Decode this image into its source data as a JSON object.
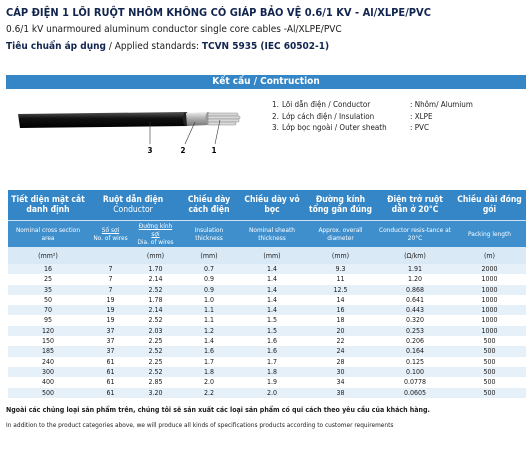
{
  "header": {
    "title": "CÁP ĐIỆN 1 LÕI RUỘT NHÔM KHÔNG CÓ GIÁP BẢO VỆ 0.6/1 KV - Al/XLPE/PVC",
    "subtitle": "0.6/1 kV unarmoured aluminum conductor single core cables -Al/XLPE/PVC",
    "standards": {
      "label_vi": "Tiêu chuẩn áp dụng",
      "label_en": "/ Applied standards:",
      "value": "TCVN 5935 (IEC 60502-1)"
    }
  },
  "construction": {
    "title": "Kết cấu / Contruction",
    "items": [
      {
        "number": "1.",
        "name": "Lõi dẫn điện / Conductor",
        "material": ": Nhôm/ Alumium"
      },
      {
        "number": "2.",
        "name": "Lớp cách điện / Insulation",
        "material": ": XLPE"
      },
      {
        "number": "3.",
        "name": "Lớp bọc ngoài / Outer sheath",
        "material": ": PVC"
      }
    ],
    "callouts": [
      "3",
      "2",
      "1"
    ]
  },
  "table": {
    "group": {
      "vi": "Ruột dẫn điện",
      "en": "Conductor"
    },
    "columns": [
      {
        "vi": "Tiết diện mặt cắt danh định",
        "en": "Nominal cross section area",
        "unit": "(mm²)"
      },
      {
        "sub": "Số sợi",
        "en": "No. of wires"
      },
      {
        "sub": "Đường kính sợi",
        "en": "Dia. of wires",
        "unit": "(mm)"
      },
      {
        "vi": "Chiều dày cách điện",
        "en": "Insulation thickness",
        "unit": "(mm)"
      },
      {
        "vi": "Chiều dày vỏ bọc",
        "en": "Nominal sheath thickness",
        "unit": "(mm)"
      },
      {
        "vi": "Đường kính tổng gần đúng",
        "en": "Approx. overall diameter",
        "unit": "(mm)"
      },
      {
        "vi": "Điện trở ruột dẫn ở 20°C",
        "en": "Conductor resis-tance at 20°C",
        "unit": "(Ω/km)"
      },
      {
        "vi": "Chiều dài đóng gói",
        "en": "Packing length",
        "unit": "(m)"
      }
    ],
    "rows": [
      [
        "16",
        "7",
        "1.70",
        "0.7",
        "1.4",
        "9.3",
        "1.91",
        "2000"
      ],
      [
        "25",
        "7",
        "2.14",
        "0.9",
        "1.4",
        "11",
        "1.20",
        "1000"
      ],
      [
        "35",
        "7",
        "2.52",
        "0.9",
        "1.4",
        "12.5",
        "0.868",
        "1000"
      ],
      [
        "50",
        "19",
        "1.78",
        "1.0",
        "1.4",
        "14",
        "0.641",
        "1000"
      ],
      [
        "70",
        "19",
        "2.14",
        "1.1",
        "1.4",
        "16",
        "0.443",
        "1000"
      ],
      [
        "95",
        "19",
        "2.52",
        "1.1",
        "1.5",
        "18",
        "0.320",
        "1000"
      ],
      [
        "120",
        "37",
        "2.03",
        "1.2",
        "1.5",
        "20",
        "0.253",
        "1000"
      ],
      [
        "150",
        "37",
        "2.25",
        "1.4",
        "1.6",
        "22",
        "0.206",
        "500"
      ],
      [
        "185",
        "37",
        "2.52",
        "1.6",
        "1.6",
        "24",
        "0.164",
        "500"
      ],
      [
        "240",
        "61",
        "2.25",
        "1.7",
        "1.7",
        "28",
        "0.125",
        "500"
      ],
      [
        "300",
        "61",
        "2.52",
        "1.8",
        "1.8",
        "30",
        "0.100",
        "500"
      ],
      [
        "400",
        "61",
        "2.85",
        "2.0",
        "1.9",
        "34",
        "0.0778",
        "500"
      ],
      [
        "500",
        "61",
        "3.20",
        "2.2",
        "2.0",
        "38",
        "0.0605",
        "500"
      ]
    ]
  },
  "footnotes": {
    "vi": "Ngoài các chủng loại sản phẩm trên, chúng tôi sẽ sản xuất các loại sản phẩm có qui cách theo yêu cầu của khách hàng.",
    "en": "In addition to the product categories above, we will produce all kinds of specifications products according to customer requirements"
  }
}
